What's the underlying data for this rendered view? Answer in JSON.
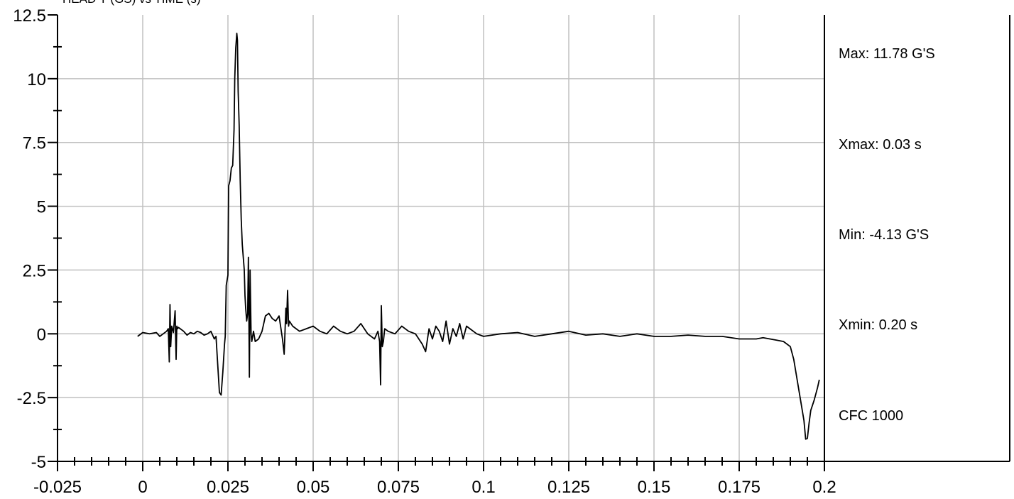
{
  "chart_data": {
    "type": "line",
    "title": "HEAD Y (GS) vs TIME (s)",
    "xlabel": "",
    "ylabel": "",
    "xlim": [
      -0.025,
      0.2
    ],
    "ylim": [
      -5,
      12.5
    ],
    "x_ticks": [
      "-0.025",
      "0",
      "0.025",
      "0.05",
      "0.075",
      "0.1",
      "0.125",
      "0.15",
      "0.175",
      "0.2"
    ],
    "y_ticks": [
      "12.5",
      "10",
      "7.5",
      "5",
      "2.5",
      "0",
      "-2.5",
      "-5"
    ],
    "grid": true,
    "stats": [
      "Max: 11.78 G'S",
      "Xmax: 0.03 s",
      "Min: -4.13 G'S",
      "Xmin: 0.20 s",
      "CFC 1000"
    ],
    "series": [
      {
        "x": [
          -0.0015,
          0.0,
          0.002,
          0.004,
          0.005,
          0.006,
          0.007,
          0.0075,
          0.0078,
          0.008,
          0.0082,
          0.0085,
          0.009,
          0.0095,
          0.0098,
          0.01,
          0.0102,
          0.0105,
          0.011,
          0.012,
          0.013,
          0.014,
          0.015,
          0.016,
          0.017,
          0.018,
          0.019,
          0.02,
          0.021,
          0.0215,
          0.022,
          0.0225,
          0.023,
          0.0235,
          0.024,
          0.0242,
          0.0245,
          0.025,
          0.0252,
          0.0256,
          0.026,
          0.0264,
          0.0268,
          0.027,
          0.0273,
          0.0276,
          0.0278,
          0.028,
          0.0283,
          0.0286,
          0.0289,
          0.0292,
          0.0295,
          0.0298,
          0.03,
          0.0302,
          0.0305,
          0.0308,
          0.031,
          0.0313,
          0.0315,
          0.0318,
          0.032,
          0.0325,
          0.033,
          0.034,
          0.035,
          0.0355,
          0.036,
          0.037,
          0.038,
          0.039,
          0.04,
          0.041,
          0.0415,
          0.042,
          0.0422,
          0.0425,
          0.0428,
          0.043,
          0.044,
          0.045,
          0.046,
          0.048,
          0.05,
          0.052,
          0.054,
          0.056,
          0.058,
          0.06,
          0.062,
          0.064,
          0.066,
          0.068,
          0.069,
          0.0695,
          0.0698,
          0.07,
          0.0703,
          0.0706,
          0.071,
          0.072,
          0.074,
          0.076,
          0.078,
          0.08,
          0.082,
          0.083,
          0.084,
          0.085,
          0.086,
          0.087,
          0.088,
          0.089,
          0.09,
          0.091,
          0.092,
          0.093,
          0.094,
          0.095,
          0.096,
          0.098,
          0.1,
          0.105,
          0.11,
          0.115,
          0.12,
          0.125,
          0.13,
          0.135,
          0.14,
          0.145,
          0.15,
          0.155,
          0.16,
          0.165,
          0.17,
          0.175,
          0.18,
          0.182,
          0.184,
          0.186,
          0.188,
          0.19,
          0.191,
          0.192,
          0.193,
          0.194,
          0.1945,
          0.195,
          0.1955,
          0.196,
          0.197,
          0.198,
          0.1985
        ],
        "y": [
          -0.1,
          0.05,
          0.0,
          0.05,
          -0.1,
          0.0,
          0.1,
          0.2,
          -1.1,
          1.15,
          -0.5,
          0.3,
          0.05,
          0.9,
          -1.0,
          0.3,
          0.2,
          0.25,
          0.2,
          0.1,
          -0.05,
          0.05,
          0.0,
          0.1,
          0.05,
          -0.05,
          0.0,
          0.1,
          -0.2,
          -0.1,
          -1.2,
          -2.3,
          -2.4,
          -1.5,
          -0.4,
          -0.1,
          1.9,
          2.3,
          5.8,
          6.0,
          6.5,
          6.6,
          8.0,
          10.0,
          11.2,
          11.78,
          11.5,
          9.5,
          8.2,
          6.0,
          4.5,
          3.5,
          3.0,
          2.5,
          1.5,
          1.0,
          0.5,
          0.8,
          3.0,
          -1.7,
          2.5,
          0.0,
          -0.3,
          0.1,
          -0.3,
          -0.2,
          0.1,
          0.4,
          0.7,
          0.8,
          0.6,
          0.5,
          0.7,
          -0.2,
          -0.8,
          1.0,
          0.4,
          1.7,
          0.3,
          0.5,
          0.3,
          0.2,
          0.1,
          0.2,
          0.3,
          0.1,
          0.0,
          0.3,
          0.1,
          0.0,
          0.1,
          0.4,
          0.0,
          -0.2,
          0.1,
          -0.3,
          -2.0,
          1.1,
          -0.5,
          -0.3,
          0.2,
          0.1,
          0.0,
          0.3,
          0.1,
          0.0,
          -0.4,
          -0.7,
          0.2,
          -0.2,
          0.3,
          0.1,
          -0.3,
          0.5,
          -0.4,
          0.2,
          -0.1,
          0.4,
          -0.2,
          0.3,
          0.2,
          0.0,
          -0.1,
          0.0,
          0.05,
          -0.1,
          0.0,
          0.1,
          -0.05,
          0.0,
          -0.1,
          0.0,
          -0.1,
          -0.1,
          -0.05,
          -0.1,
          -0.1,
          -0.2,
          -0.2,
          -0.15,
          -0.2,
          -0.25,
          -0.3,
          -0.5,
          -1.0,
          -1.8,
          -2.6,
          -3.4,
          -4.13,
          -4.1,
          -3.5,
          -3.0,
          -2.6,
          -2.1,
          -1.8
        ]
      }
    ]
  }
}
